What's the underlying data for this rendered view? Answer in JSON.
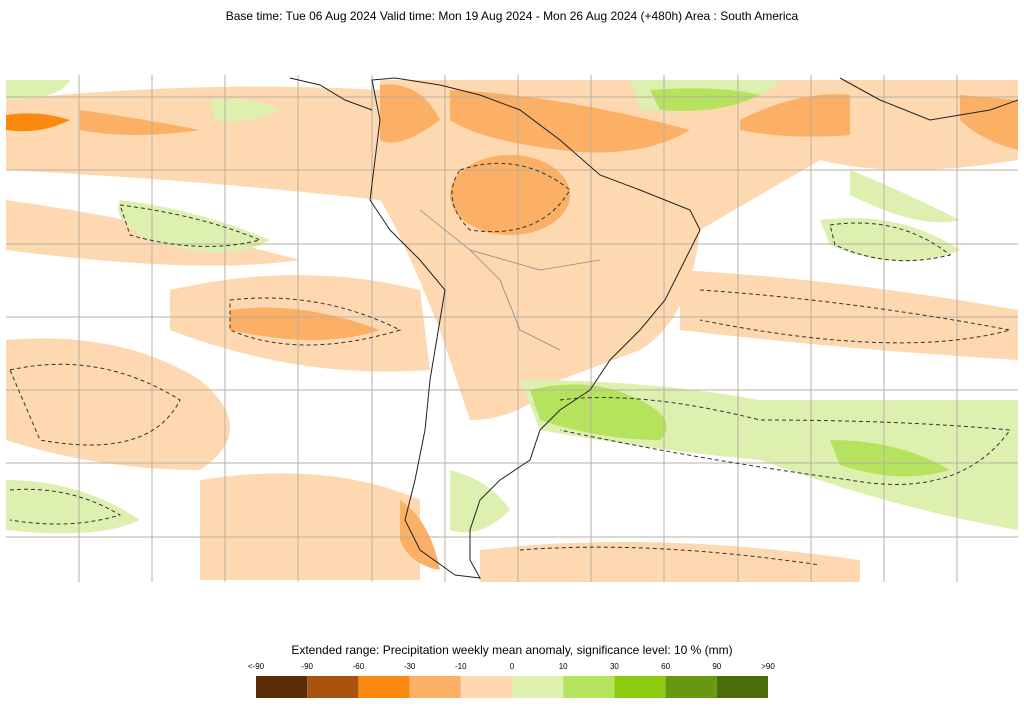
{
  "header": {
    "title": "Base time: Tue 06 Aug 2024 Valid time: Mon 19 Aug 2024 - Mon 26 Aug 2024 (+480h) Area : South America"
  },
  "legend": {
    "title": "Extended range: Precipitation weekly mean anomaly, significance level: 10 % (mm)",
    "labels": [
      "<-90",
      "-90",
      "-60",
      "-30",
      "-10",
      "0",
      "10",
      "30",
      "60",
      "90",
      ">90"
    ],
    "colors": [
      "#5c2c06",
      "#a8520d",
      "#f98a0f",
      "#fbb066",
      "#fdd8b0",
      "#ddf0b0",
      "#b5e35d",
      "#8ccb12",
      "#67980d",
      "#4b6e0a"
    ]
  }
}
